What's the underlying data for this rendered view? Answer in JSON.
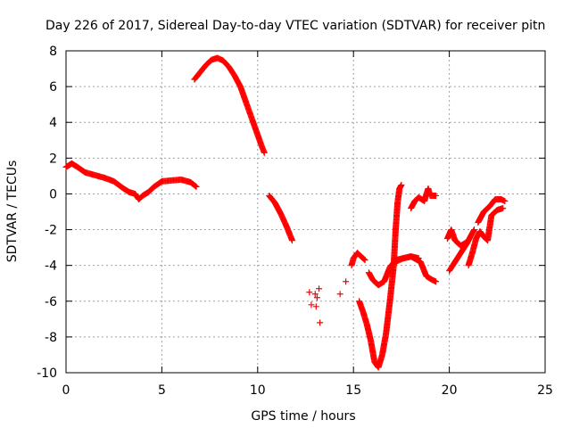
{
  "chart_data": {
    "type": "scatter",
    "title": "Day 226 of 2017, Sidereal Day-to-day VTEC variation (SDTVAR) for receiver pitn",
    "xlabel": "GPS time / hours",
    "ylabel": "SDTVAR / TECUs",
    "xlim": [
      0,
      25
    ],
    "ylim": [
      -10,
      8
    ],
    "xticks": [
      0,
      5,
      10,
      15,
      20,
      25
    ],
    "yticks": [
      -10,
      -8,
      -6,
      -4,
      -2,
      0,
      2,
      4,
      6,
      8
    ],
    "grid": true,
    "marker": "plus",
    "marker_color": "#ff0000",
    "series": [
      {
        "segments": [
          [
            [
              0.0,
              1.5
            ],
            [
              0.3,
              1.7
            ],
            [
              0.6,
              1.5
            ],
            [
              1.0,
              1.2
            ],
            [
              1.5,
              1.05
            ],
            [
              2.0,
              0.9
            ],
            [
              2.5,
              0.7
            ],
            [
              3.0,
              0.3
            ],
            [
              3.3,
              0.1
            ],
            [
              3.6,
              0.0
            ],
            [
              3.8,
              -0.3
            ],
            [
              4.0,
              -0.1
            ],
            [
              4.3,
              0.1
            ],
            [
              4.6,
              0.4
            ],
            [
              5.0,
              0.7
            ],
            [
              5.5,
              0.75
            ],
            [
              6.0,
              0.8
            ],
            [
              6.5,
              0.65
            ],
            [
              6.8,
              0.4
            ]
          ],
          [
            [
              6.7,
              6.4
            ],
            [
              7.0,
              6.8
            ],
            [
              7.3,
              7.2
            ],
            [
              7.6,
              7.5
            ],
            [
              7.9,
              7.6
            ],
            [
              8.2,
              7.45
            ],
            [
              8.5,
              7.1
            ],
            [
              8.8,
              6.6
            ],
            [
              9.1,
              6.0
            ],
            [
              9.4,
              5.1
            ],
            [
              9.7,
              4.2
            ],
            [
              10.0,
              3.3
            ],
            [
              10.2,
              2.7
            ],
            [
              10.35,
              2.3
            ]
          ],
          [
            [
              10.6,
              -0.1
            ],
            [
              10.9,
              -0.5
            ],
            [
              11.2,
              -1.1
            ],
            [
              11.5,
              -1.8
            ],
            [
              11.8,
              -2.6
            ]
          ],
          [
            [
              12.7,
              -5.5
            ],
            [
              12.8,
              -6.2
            ],
            [
              13.0,
              -5.6
            ],
            [
              13.05,
              -6.3
            ],
            [
              13.1,
              -5.8
            ],
            [
              13.2,
              -5.3
            ],
            [
              13.25,
              -7.2
            ]
          ],
          [
            [
              14.3,
              -5.6
            ],
            [
              14.6,
              -4.9
            ]
          ],
          [
            [
              14.9,
              -4.0
            ],
            [
              15.0,
              -3.6
            ],
            [
              15.2,
              -3.3
            ],
            [
              15.4,
              -3.5
            ],
            [
              15.6,
              -3.7
            ]
          ],
          [
            [
              15.3,
              -6.0
            ],
            [
              15.5,
              -6.6
            ],
            [
              15.7,
              -7.3
            ],
            [
              15.9,
              -8.2
            ],
            [
              16.1,
              -9.4
            ],
            [
              16.3,
              -9.7
            ],
            [
              16.5,
              -9.0
            ],
            [
              16.7,
              -7.8
            ],
            [
              16.9,
              -6.0
            ],
            [
              17.1,
              -4.0
            ],
            [
              17.2,
              -2.0
            ],
            [
              17.3,
              -0.5
            ],
            [
              17.4,
              0.3
            ],
            [
              17.5,
              0.5
            ]
          ],
          [
            [
              15.8,
              -4.4
            ],
            [
              16.0,
              -4.8
            ],
            [
              16.3,
              -5.1
            ],
            [
              16.6,
              -4.9
            ],
            [
              16.9,
              -4.1
            ],
            [
              17.2,
              -3.7
            ],
            [
              17.6,
              -3.6
            ],
            [
              18.0,
              -3.5
            ],
            [
              18.4,
              -3.6
            ]
          ],
          [
            [
              18.0,
              -0.8
            ],
            [
              18.2,
              -0.4
            ],
            [
              18.4,
              -0.2
            ],
            [
              18.7,
              -0.4
            ],
            [
              18.9,
              0.3
            ],
            [
              19.0,
              -0.1
            ],
            [
              19.3,
              -0.1
            ]
          ],
          [
            [
              17.2,
              -3.8
            ],
            [
              17.6,
              -3.6
            ],
            [
              18.0,
              -3.5
            ],
            [
              18.5,
              -3.8
            ],
            [
              18.8,
              -4.6
            ],
            [
              19.1,
              -4.8
            ],
            [
              19.3,
              -4.9
            ]
          ],
          [
            [
              19.9,
              -2.5
            ],
            [
              20.1,
              -2.0
            ],
            [
              20.3,
              -2.6
            ],
            [
              20.6,
              -2.9
            ],
            [
              20.9,
              -2.7
            ]
          ],
          [
            [
              20.0,
              -4.3
            ],
            [
              20.3,
              -3.8
            ],
            [
              20.6,
              -3.3
            ],
            [
              20.9,
              -2.8
            ],
            [
              21.1,
              -2.4
            ],
            [
              21.3,
              -2.0
            ]
          ],
          [
            [
              21.0,
              -4.0
            ],
            [
              21.2,
              -3.3
            ],
            [
              21.4,
              -2.5
            ],
            [
              21.6,
              -2.1
            ],
            [
              21.8,
              -2.4
            ],
            [
              22.0,
              -2.6
            ],
            [
              22.2,
              -1.2
            ],
            [
              22.5,
              -0.9
            ],
            [
              22.8,
              -0.8
            ]
          ],
          [
            [
              21.5,
              -1.6
            ],
            [
              21.8,
              -1.0
            ],
            [
              22.1,
              -0.7
            ],
            [
              22.4,
              -0.3
            ],
            [
              22.7,
              -0.3
            ],
            [
              22.9,
              -0.4
            ]
          ]
        ]
      }
    ]
  }
}
